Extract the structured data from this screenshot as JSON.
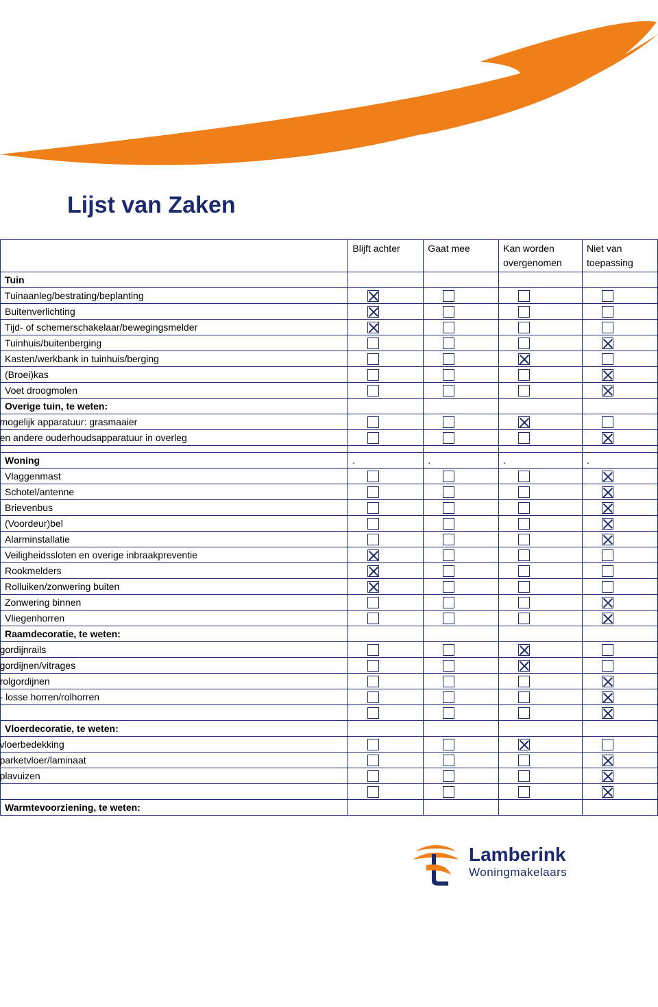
{
  "colors": {
    "brand_orange": "#f07f1a",
    "brand_navy": "#1a2a6c",
    "white": "#ffffff"
  },
  "title": "Lijst van Zaken",
  "headers": {
    "col1": "Blijft achter",
    "col2": "Gaat mee",
    "col3_l1": "Kan worden",
    "col3_l2": "overgenomen",
    "col4_l1": "Niet van",
    "col4_l2": "toepassing"
  },
  "sections": {
    "tuin": {
      "heading": "Tuin",
      "items": [
        {
          "label": "Tuinaanleg/bestrating/beplanting",
          "c": [
            1,
            0,
            0,
            0
          ]
        },
        {
          "label": "Buitenverlichting",
          "c": [
            1,
            0,
            0,
            0
          ]
        },
        {
          "label": "Tijd- of schemerschakelaar/bewegingsmelder",
          "c": [
            1,
            0,
            0,
            0
          ]
        },
        {
          "label": "Tuinhuis/buitenberging",
          "c": [
            0,
            0,
            0,
            1
          ]
        },
        {
          "label": "Kasten/werkbank in tuinhuis/berging",
          "c": [
            0,
            0,
            1,
            0
          ]
        },
        {
          "label": "(Broei)kas",
          "c": [
            0,
            0,
            0,
            1
          ]
        },
        {
          "label": "Voet droogmolen",
          "c": [
            0,
            0,
            0,
            1
          ]
        }
      ],
      "overige_heading": "Overige tuin, te weten:",
      "overige": [
        {
          "label": "mogelijk apparatuur: grasmaaier",
          "c": [
            0,
            0,
            1,
            0
          ]
        },
        {
          "label": "en andere ouderhoudsapparatuur in overleg",
          "c": [
            0,
            0,
            0,
            1
          ]
        }
      ]
    },
    "woning": {
      "heading": "Woning",
      "items": [
        {
          "label": "Vlaggenmast",
          "c": [
            0,
            0,
            0,
            1
          ]
        },
        {
          "label": "Schotel/antenne",
          "c": [
            0,
            0,
            0,
            1
          ]
        },
        {
          "label": "Brievenbus",
          "c": [
            0,
            0,
            0,
            1
          ]
        },
        {
          "label": "(Voordeur)bel",
          "c": [
            0,
            0,
            0,
            1
          ]
        },
        {
          "label": "Alarminstallatie",
          "c": [
            0,
            0,
            0,
            1
          ]
        },
        {
          "label": "Veiligheidssloten en overige inbraakpreventie",
          "c": [
            1,
            0,
            0,
            0
          ]
        },
        {
          "label": "Rookmelders",
          "c": [
            1,
            0,
            0,
            0
          ]
        },
        {
          "label": "Rolluiken/zonwering buiten",
          "c": [
            1,
            0,
            0,
            0
          ]
        },
        {
          "label": "Zonwering binnen",
          "c": [
            0,
            0,
            0,
            1
          ]
        },
        {
          "label": "Vliegenhorren",
          "c": [
            0,
            0,
            0,
            1
          ]
        }
      ]
    },
    "raam": {
      "heading": "Raamdecoratie, te weten:",
      "items": [
        {
          "label": "gordijnrails",
          "c": [
            0,
            0,
            1,
            0
          ]
        },
        {
          "label": "gordijnen/vitrages",
          "c": [
            0,
            0,
            1,
            0
          ]
        },
        {
          "label": "rolgordijnen",
          "c": [
            0,
            0,
            0,
            1
          ]
        },
        {
          "label": "- losse horren/rolhorren",
          "c": [
            0,
            0,
            0,
            1
          ]
        },
        {
          "label": "",
          "c": [
            0,
            0,
            0,
            1
          ]
        }
      ]
    },
    "vloer": {
      "heading": "Vloerdecoratie, te weten:",
      "items": [
        {
          "label": "vloerbedekking",
          "c": [
            0,
            0,
            1,
            0
          ]
        },
        {
          "label": "parketvloer/laminaat",
          "c": [
            0,
            0,
            0,
            1
          ]
        },
        {
          "label": "plavuizen",
          "c": [
            0,
            0,
            0,
            1
          ]
        },
        {
          "label": "",
          "c": [
            0,
            0,
            0,
            1
          ]
        }
      ]
    },
    "warmte": {
      "heading": "Warmtevoorziening, te weten:"
    }
  },
  "footer": {
    "brand": "Lamberink",
    "tagline": "Woningmakelaars"
  }
}
